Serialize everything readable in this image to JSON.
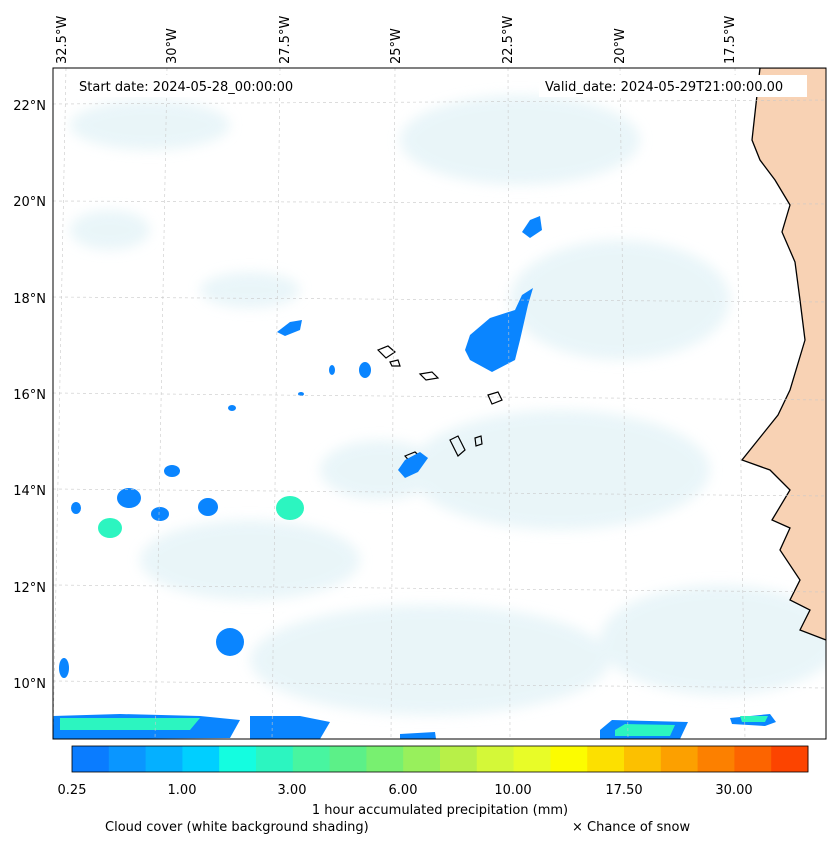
{
  "map": {
    "start_date": "Start date: 2024-05-28_00:00:00",
    "valid_date": "Valid_date: 2024-05-29T21:00:00.00",
    "lon_labels": [
      "32.5°W",
      "30°W",
      "27.5°W",
      "25°W",
      "22.5°W",
      "20°W",
      "17.5°W"
    ],
    "lat_labels": [
      "22°N",
      "20°N",
      "18°N",
      "16°N",
      "14°N",
      "12°N",
      "10°N"
    ],
    "land_color": "#f8d2b4",
    "precip_color": "#0a85ff",
    "cloud_color": "#d8eef4"
  },
  "colorbar": {
    "colors": [
      "#0a7cff",
      "#0a96ff",
      "#05b0ff",
      "#00cfff",
      "#14fde0",
      "#2cf5c0",
      "#48f5a0",
      "#5cf088",
      "#78f070",
      "#98f05c",
      "#b8f048",
      "#d4f838",
      "#e8fc28",
      "#fcfc00",
      "#fce000",
      "#fcc000",
      "#fca000",
      "#fc8000",
      "#fc6400",
      "#fc4400"
    ],
    "tick_labels": [
      "0.25",
      "1.00",
      "3.00",
      "6.00",
      "10.00",
      "17.50",
      "30.00"
    ],
    "title": "1 hour accumulated precipitation (mm)"
  },
  "footer": {
    "cloud_label": "Cloud cover (white background shading)",
    "snow_label": "× Chance of snow"
  }
}
